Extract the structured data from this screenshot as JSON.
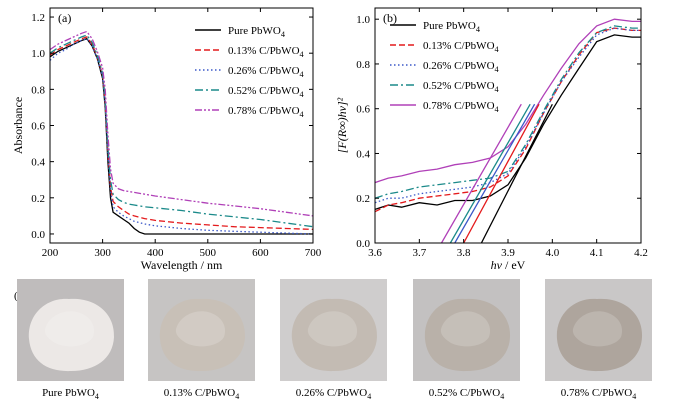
{
  "chart_data": [
    {
      "type": "line",
      "panel_label": "(a)",
      "xlabel": "Wavelength / nm",
      "ylabel": "Absorbance",
      "xlim": [
        200,
        700
      ],
      "ylim": [
        -0.05,
        1.25
      ],
      "x_ticks": [
        200,
        300,
        400,
        500,
        600,
        700
      ],
      "y_ticks": [
        0.0,
        0.2,
        0.4,
        0.6,
        0.8,
        1.0,
        1.2
      ],
      "legend": "top-right",
      "series": [
        {
          "name": "Pure PbWO4",
          "color": "#000000",
          "dash": "solid",
          "x": [
            200,
            215,
            230,
            245,
            260,
            270,
            280,
            290,
            300,
            305,
            310,
            315,
            320,
            330,
            340,
            350,
            360,
            370,
            380,
            400,
            450,
            500,
            550,
            600,
            650,
            700
          ],
          "y": [
            0.98,
            1.01,
            1.03,
            1.05,
            1.07,
            1.08,
            1.04,
            0.97,
            0.86,
            0.7,
            0.4,
            0.2,
            0.12,
            0.1,
            0.08,
            0.06,
            0.03,
            0.01,
            0.0,
            0.0,
            0.0,
            0.0,
            0.0,
            0.0,
            0.0,
            0.0
          ]
        },
        {
          "name": "0.13% C/PbWO4",
          "color": "#e41a1c",
          "dash": "6,3",
          "x": [
            200,
            215,
            230,
            245,
            260,
            270,
            280,
            290,
            300,
            305,
            310,
            315,
            320,
            330,
            340,
            350,
            360,
            380,
            400,
            450,
            500,
            550,
            600,
            650,
            700
          ],
          "y": [
            0.99,
            1.02,
            1.04,
            1.06,
            1.08,
            1.09,
            1.05,
            0.98,
            0.88,
            0.73,
            0.45,
            0.26,
            0.18,
            0.15,
            0.13,
            0.11,
            0.1,
            0.085,
            0.075,
            0.06,
            0.05,
            0.04,
            0.035,
            0.03,
            0.025
          ]
        },
        {
          "name": "0.26% C/PbWO4",
          "color": "#3b58c8",
          "dash": "1.5,2.5",
          "x": [
            200,
            215,
            230,
            245,
            260,
            270,
            280,
            290,
            300,
            305,
            310,
            315,
            320,
            330,
            340,
            350,
            360,
            380,
            400,
            450,
            500,
            550,
            600,
            650,
            700
          ],
          "y": [
            0.96,
            1.0,
            1.02,
            1.05,
            1.07,
            1.08,
            1.04,
            0.97,
            0.87,
            0.72,
            0.44,
            0.24,
            0.15,
            0.12,
            0.1,
            0.085,
            0.07,
            0.055,
            0.045,
            0.03,
            0.02,
            0.015,
            0.01,
            0.005,
            0.0
          ]
        },
        {
          "name": "0.52% C/PbWO4",
          "color": "#1b8a8a",
          "dash": "8,3,2,3",
          "x": [
            200,
            215,
            230,
            245,
            260,
            270,
            280,
            290,
            300,
            305,
            310,
            315,
            320,
            330,
            340,
            350,
            360,
            380,
            400,
            450,
            500,
            550,
            600,
            650,
            700
          ],
          "y": [
            1.0,
            1.03,
            1.05,
            1.07,
            1.09,
            1.1,
            1.06,
            0.99,
            0.89,
            0.75,
            0.48,
            0.3,
            0.22,
            0.19,
            0.175,
            0.165,
            0.16,
            0.15,
            0.145,
            0.13,
            0.11,
            0.095,
            0.08,
            0.06,
            0.04
          ]
        },
        {
          "name": "0.78% C/PbWO4",
          "color": "#b040b8",
          "dash": "7,2,2,2,2,2",
          "x": [
            200,
            215,
            230,
            245,
            260,
            270,
            280,
            290,
            300,
            305,
            310,
            315,
            320,
            330,
            340,
            350,
            360,
            380,
            400,
            450,
            500,
            550,
            600,
            650,
            700
          ],
          "y": [
            1.02,
            1.05,
            1.07,
            1.09,
            1.11,
            1.12,
            1.08,
            1.01,
            0.92,
            0.8,
            0.55,
            0.36,
            0.28,
            0.25,
            0.24,
            0.235,
            0.23,
            0.22,
            0.21,
            0.19,
            0.17,
            0.155,
            0.14,
            0.12,
            0.1
          ]
        }
      ]
    },
    {
      "type": "line",
      "panel_label": "(b)",
      "xlabel": "hν / eV",
      "ylabel": "[F(R∞)hν]²",
      "xlim": [
        3.6,
        4.2
      ],
      "ylim": [
        0.0,
        1.05
      ],
      "x_ticks": [
        3.6,
        3.7,
        3.8,
        3.9,
        4.0,
        4.1,
        4.2
      ],
      "y_ticks": [
        0.0,
        0.2,
        0.4,
        0.6,
        0.8,
        1.0
      ],
      "legend": "top-left",
      "series": [
        {
          "name": "Pure PbWO4",
          "color": "#000000",
          "dash": "solid",
          "x": [
            3.6,
            3.63,
            3.66,
            3.7,
            3.74,
            3.78,
            3.82,
            3.86,
            3.9,
            3.94,
            3.98,
            4.02,
            4.06,
            4.1,
            4.14,
            4.18,
            4.2
          ],
          "y": [
            0.15,
            0.17,
            0.16,
            0.18,
            0.17,
            0.19,
            0.19,
            0.21,
            0.26,
            0.38,
            0.53,
            0.66,
            0.78,
            0.9,
            0.93,
            0.92,
            0.92
          ]
        },
        {
          "name": "0.13% C/PbWO4",
          "color": "#e41a1c",
          "dash": "6,3",
          "x": [
            3.6,
            3.63,
            3.66,
            3.7,
            3.74,
            3.78,
            3.82,
            3.86,
            3.9,
            3.94,
            3.98,
            4.02,
            4.06,
            4.1,
            4.14,
            4.18,
            4.2
          ],
          "y": [
            0.14,
            0.17,
            0.18,
            0.2,
            0.21,
            0.22,
            0.23,
            0.25,
            0.3,
            0.42,
            0.58,
            0.72,
            0.84,
            0.94,
            0.96,
            0.95,
            0.95
          ]
        },
        {
          "name": "0.26% C/PbWO4",
          "color": "#3b58c8",
          "dash": "1.5,2.5",
          "x": [
            3.6,
            3.63,
            3.66,
            3.7,
            3.74,
            3.78,
            3.82,
            3.86,
            3.9,
            3.94,
            3.98,
            4.02,
            4.06,
            4.1,
            4.14,
            4.18,
            4.2
          ],
          "y": [
            0.18,
            0.2,
            0.2,
            0.22,
            0.23,
            0.24,
            0.25,
            0.27,
            0.31,
            0.43,
            0.58,
            0.72,
            0.83,
            0.93,
            0.96,
            0.95,
            0.95
          ]
        },
        {
          "name": "0.52% C/PbWO4",
          "color": "#1b8a8a",
          "dash": "8,3,2,3",
          "x": [
            3.6,
            3.63,
            3.66,
            3.7,
            3.74,
            3.78,
            3.82,
            3.86,
            3.9,
            3.94,
            3.98,
            4.02,
            4.06,
            4.1,
            4.14,
            4.18,
            4.2
          ],
          "y": [
            0.2,
            0.22,
            0.23,
            0.25,
            0.26,
            0.27,
            0.28,
            0.29,
            0.32,
            0.44,
            0.59,
            0.73,
            0.85,
            0.94,
            0.97,
            0.96,
            0.96
          ]
        },
        {
          "name": "0.78% C/PbWO4",
          "color": "#b040b8",
          "dash": "solid",
          "x": [
            3.6,
            3.63,
            3.66,
            3.7,
            3.74,
            3.78,
            3.82,
            3.86,
            3.9,
            3.94,
            3.98,
            4.02,
            4.06,
            4.1,
            4.14,
            4.18,
            4.2
          ],
          "y": [
            0.27,
            0.29,
            0.3,
            0.32,
            0.33,
            0.35,
            0.36,
            0.38,
            0.43,
            0.53,
            0.66,
            0.78,
            0.89,
            0.97,
            1.0,
            0.99,
            0.99
          ]
        }
      ],
      "tangent_lines": [
        {
          "color": "#000000",
          "x": [
            3.84,
            4.0
          ],
          "y": [
            0.0,
            0.62
          ]
        },
        {
          "color": "#e41a1c",
          "x": [
            3.8,
            3.97
          ],
          "y": [
            0.0,
            0.62
          ]
        },
        {
          "color": "#3b58c8",
          "x": [
            3.78,
            3.96
          ],
          "y": [
            0.0,
            0.62
          ]
        },
        {
          "color": "#1b8a8a",
          "x": [
            3.77,
            3.95
          ],
          "y": [
            0.0,
            0.62
          ]
        },
        {
          "color": "#b040b8",
          "x": [
            3.75,
            3.93
          ],
          "y": [
            0.0,
            0.62
          ]
        }
      ]
    }
  ],
  "panel_c": {
    "label": "(c)",
    "samples": [
      {
        "caption": "Pure PbWO4",
        "tone": "#ece8e6",
        "bg": "#bfbcbc"
      },
      {
        "caption": "0.13% C/PbWO4",
        "tone": "#c8c0b7",
        "bg": "#c6c4c3"
      },
      {
        "caption": "0.26% C/PbWO4",
        "tone": "#c3bbb3",
        "bg": "#cfcdcd"
      },
      {
        "caption": "0.52% C/PbWO4",
        "tone": "#b9b1a9",
        "bg": "#c3c1c1"
      },
      {
        "caption": "0.78% C/PbWO4",
        "tone": "#aea59d",
        "bg": "#c9c7c7"
      }
    ]
  }
}
